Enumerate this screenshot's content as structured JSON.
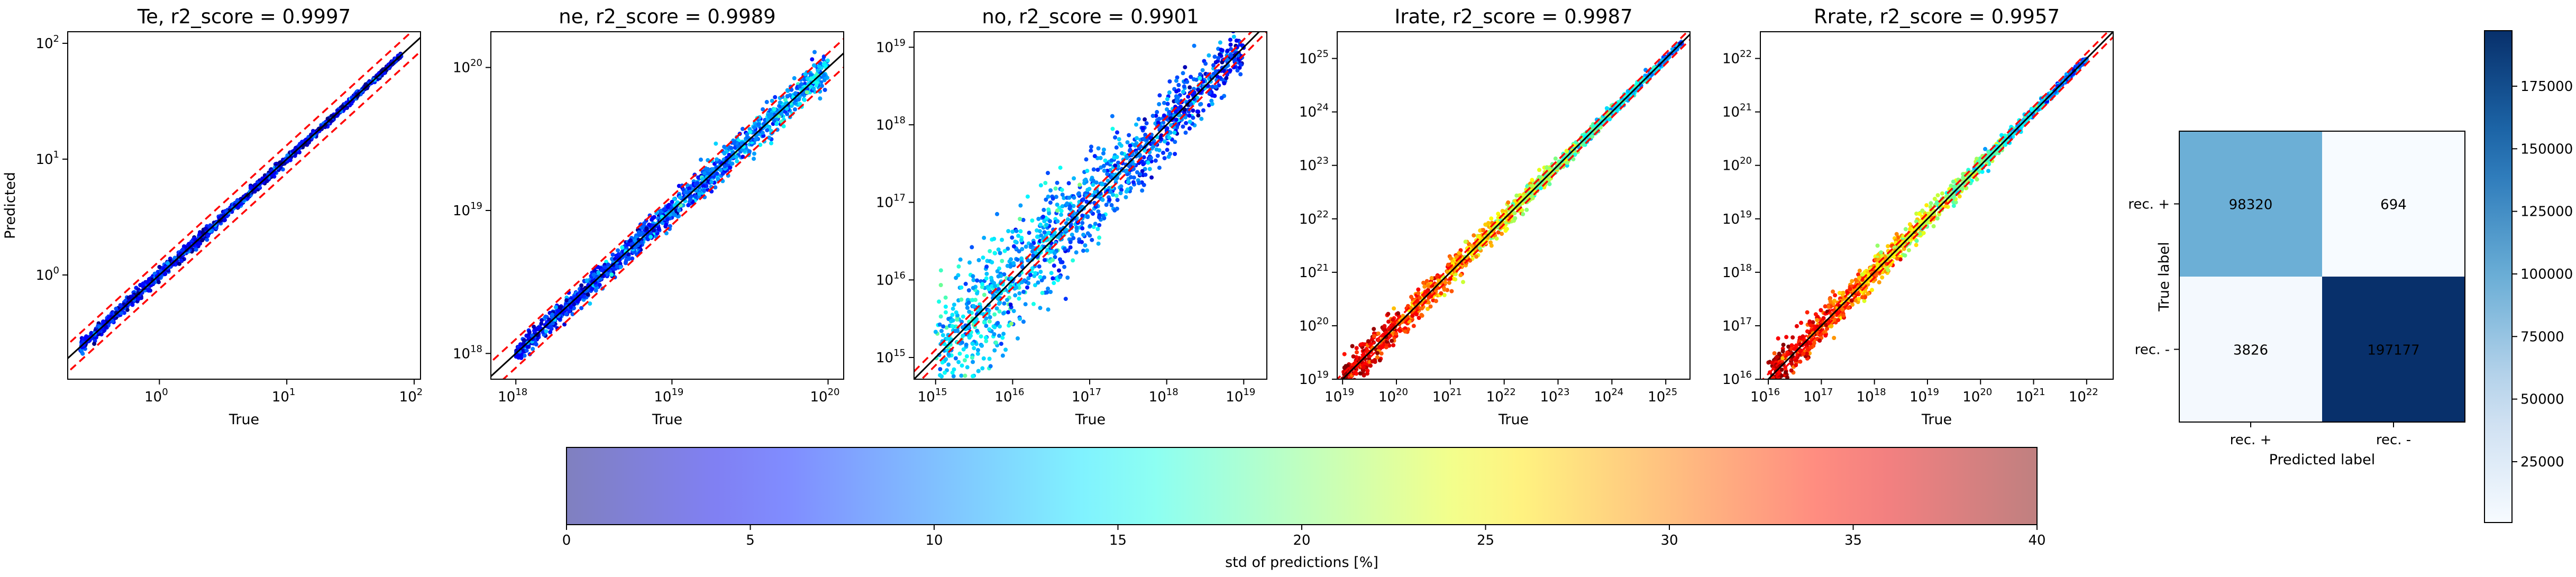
{
  "chart_data": [
    {
      "type": "scatter",
      "title": "Te, r2_score = 0.9997",
      "xlabel": "True",
      "ylabel": "Predicted",
      "xscale": "log",
      "yscale": "log",
      "xlim_log10": [
        -0.72,
        2.05
      ],
      "ylim_log10": [
        -0.9,
        2.1
      ],
      "x_ticks": [
        {
          "base": "10",
          "exp": "0",
          "v": 0
        },
        {
          "base": "10",
          "exp": "1",
          "v": 1
        },
        {
          "base": "10",
          "exp": "2",
          "v": 2
        }
      ],
      "y_ticks": [
        {
          "base": "10",
          "exp": "0",
          "v": 0
        },
        {
          "base": "10",
          "exp": "1",
          "v": 1
        },
        {
          "base": "10",
          "exp": "2",
          "v": 2
        }
      ],
      "data_range_log10": [
        -0.62,
        1.9
      ],
      "spread_log10": [
        0.03,
        0.01
      ],
      "std_pct": [
        5,
        4
      ],
      "bounds_offset_log10": 0.12
    },
    {
      "type": "scatter",
      "title": "ne, r2_score = 0.9989",
      "xlabel": "True",
      "ylabel": "",
      "xscale": "log",
      "yscale": "log",
      "xlim_log10": [
        17.84,
        20.1
      ],
      "ylim_log10": [
        17.82,
        20.25
      ],
      "x_ticks": [
        {
          "base": "10",
          "exp": "18",
          "v": 18
        },
        {
          "base": "10",
          "exp": "19",
          "v": 19
        },
        {
          "base": "10",
          "exp": "20",
          "v": 20
        }
      ],
      "y_ticks": [
        {
          "base": "10",
          "exp": "18",
          "v": 18
        },
        {
          "base": "10",
          "exp": "19",
          "v": 19
        },
        {
          "base": "10",
          "exp": "20",
          "v": 20
        }
      ],
      "data_range_log10": [
        18.0,
        20.0
      ],
      "spread_log10": [
        0.03,
        0.06
      ],
      "std_pct": [
        5,
        12
      ],
      "bounds_offset_log10": 0.1
    },
    {
      "type": "scatter",
      "title": "no, r2_score = 0.9901",
      "xlabel": "True",
      "ylabel": "",
      "xscale": "log",
      "yscale": "log",
      "xlim_log10": [
        14.72,
        19.3
      ],
      "ylim_log10": [
        14.72,
        19.2
      ],
      "x_ticks": [
        {
          "base": "10",
          "exp": "15",
          "v": 15
        },
        {
          "base": "10",
          "exp": "16",
          "v": 16
        },
        {
          "base": "10",
          "exp": "17",
          "v": 17
        },
        {
          "base": "10",
          "exp": "18",
          "v": 18
        },
        {
          "base": "10",
          "exp": "19",
          "v": 19
        }
      ],
      "y_ticks": [
        {
          "base": "10",
          "exp": "15",
          "v": 15
        },
        {
          "base": "10",
          "exp": "16",
          "v": 16
        },
        {
          "base": "10",
          "exp": "17",
          "v": 17
        },
        {
          "base": "10",
          "exp": "18",
          "v": 18
        },
        {
          "base": "10",
          "exp": "19",
          "v": 19
        }
      ],
      "data_range_log10": [
        15.0,
        19.0
      ],
      "spread_log10": [
        0.45,
        0.12
      ],
      "std_pct": [
        14,
        6
      ],
      "bounds_offset_log10": 0.1
    },
    {
      "type": "scatter",
      "title": "Irate, r2_score = 0.9987",
      "xlabel": "True",
      "ylabel": "",
      "xscale": "log",
      "yscale": "log",
      "xlim_log10": [
        18.9,
        25.45
      ],
      "ylim_log10": [
        19.0,
        25.5
      ],
      "x_ticks": [
        {
          "base": "10",
          "exp": "19",
          "v": 19
        },
        {
          "base": "10",
          "exp": "20",
          "v": 20
        },
        {
          "base": "10",
          "exp": "21",
          "v": 21
        },
        {
          "base": "10",
          "exp": "22",
          "v": 22
        },
        {
          "base": "10",
          "exp": "23",
          "v": 23
        },
        {
          "base": "10",
          "exp": "24",
          "v": 24
        },
        {
          "base": "10",
          "exp": "25",
          "v": 25
        }
      ],
      "y_ticks": [
        {
          "base": "10",
          "exp": "19",
          "v": 19
        },
        {
          "base": "10",
          "exp": "20",
          "v": 20
        },
        {
          "base": "10",
          "exp": "21",
          "v": 21
        },
        {
          "base": "10",
          "exp": "22",
          "v": 22
        },
        {
          "base": "10",
          "exp": "23",
          "v": 23
        },
        {
          "base": "10",
          "exp": "24",
          "v": 24
        },
        {
          "base": "10",
          "exp": "25",
          "v": 25
        }
      ],
      "data_range_log10": [
        19.0,
        25.3
      ],
      "spread_log10": [
        0.18,
        0.02
      ],
      "std_pct": [
        38,
        10
      ],
      "bounds_offset_log10": 0.1
    },
    {
      "type": "scatter",
      "title": "Rrate, r2_score = 0.9957",
      "xlabel": "True",
      "ylabel": "",
      "xscale": "log",
      "yscale": "log",
      "xlim_log10": [
        15.85,
        22.5
      ],
      "ylim_log10": [
        16.0,
        22.5
      ],
      "x_ticks": [
        {
          "base": "10",
          "exp": "16",
          "v": 16
        },
        {
          "base": "10",
          "exp": "17",
          "v": 17
        },
        {
          "base": "10",
          "exp": "18",
          "v": 18
        },
        {
          "base": "10",
          "exp": "19",
          "v": 19
        },
        {
          "base": "10",
          "exp": "20",
          "v": 20
        },
        {
          "base": "10",
          "exp": "21",
          "v": 21
        },
        {
          "base": "10",
          "exp": "22",
          "v": 22
        }
      ],
      "y_ticks": [
        {
          "base": "10",
          "exp": "16",
          "v": 16
        },
        {
          "base": "10",
          "exp": "17",
          "v": 17
        },
        {
          "base": "10",
          "exp": "18",
          "v": 18
        },
        {
          "base": "10",
          "exp": "19",
          "v": 19
        },
        {
          "base": "10",
          "exp": "20",
          "v": 20
        },
        {
          "base": "10",
          "exp": "21",
          "v": 21
        },
        {
          "base": "10",
          "exp": "22",
          "v": 22
        }
      ],
      "data_range_log10": [
        16.0,
        22.0
      ],
      "spread_log10": [
        0.2,
        0.02
      ],
      "std_pct": [
        38,
        8
      ],
      "bounds_offset_log10": 0.1
    },
    {
      "type": "heatmap",
      "title": "",
      "xlabel": "Predicted label",
      "ylabel": "True label",
      "x_categories": [
        "rec. +",
        "rec. -"
      ],
      "y_categories": [
        "rec. +",
        "rec. -"
      ],
      "values": [
        [
          98320,
          694
        ],
        [
          3826,
          197177
        ]
      ],
      "colormap": "Blues",
      "colorbar_ticks": [
        "25000",
        "50000",
        "75000",
        "100000",
        "125000",
        "150000",
        "175000"
      ],
      "colorbar_tick_values": [
        25000,
        50000,
        75000,
        100000,
        125000,
        150000,
        175000
      ],
      "colorbar_range": [
        694,
        197177
      ]
    }
  ],
  "std_colorbar": {
    "label": "std of predictions [%]",
    "range": [
      0,
      40
    ],
    "ticks": [
      "0",
      "5",
      "10",
      "15",
      "20",
      "25",
      "30",
      "35",
      "40"
    ],
    "tick_values": [
      0,
      5,
      10,
      15,
      20,
      25,
      30,
      35,
      40
    ],
    "colormap": "jet"
  },
  "colors": {
    "identity_line": "#000000",
    "bound_lines": "#ff0000",
    "blues_low": "#f7fbff",
    "blues_high": "#08306b"
  }
}
